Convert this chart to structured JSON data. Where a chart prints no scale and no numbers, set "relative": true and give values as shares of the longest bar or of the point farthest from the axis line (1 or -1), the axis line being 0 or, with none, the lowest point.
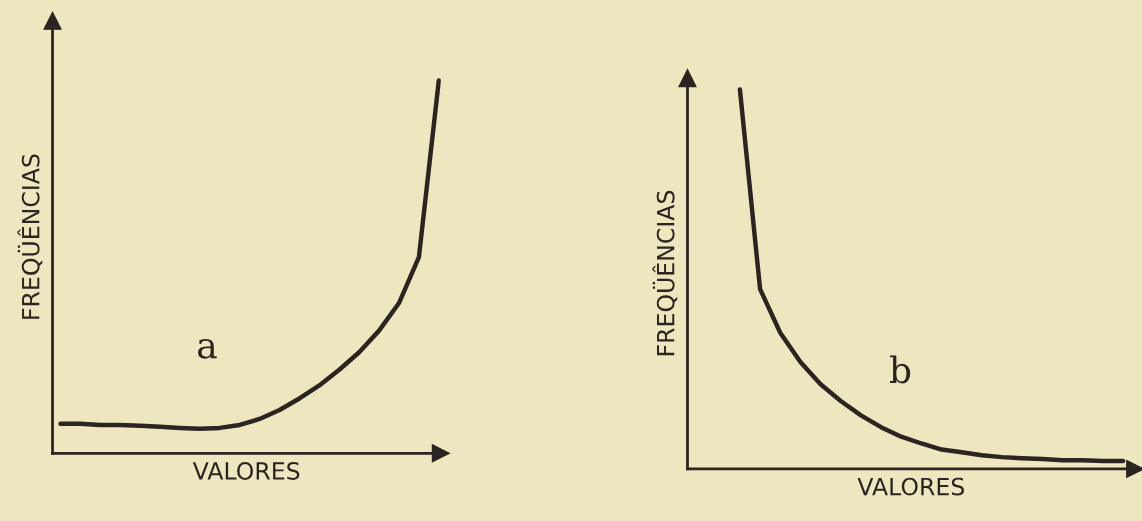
{
  "chart_data": [
    {
      "type": "line",
      "relative": true,
      "xlabel": "VALORES",
      "ylabel": "FREQÜÊNCIAS",
      "annotations": [
        "a"
      ],
      "categories": [
        null,
        null,
        null,
        null,
        null,
        null,
        null,
        null,
        null,
        null,
        null,
        null,
        null,
        null,
        null,
        null,
        null,
        null,
        null,
        null
      ],
      "series": [
        {
          "color": "#2a2520",
          "values": [
            0.079,
            0.079,
            0.076,
            0.076,
            0.074,
            0.071,
            0.068,
            0.066,
            0.068,
            0.076,
            0.092,
            0.116,
            0.147,
            0.182,
            0.224,
            0.271,
            0.329,
            0.403,
            0.526,
            1.0
          ]
        }
      ],
      "grid": false,
      "legend": false,
      "tick_labels": false,
      "marker": "none",
      "line_style": "solid"
    },
    {
      "type": "line",
      "relative": true,
      "xlabel": "VALORES",
      "ylabel": "FREQÜÊNCIAS",
      "annotations": [
        "b"
      ],
      "categories": [
        null,
        null,
        null,
        null,
        null,
        null,
        null,
        null,
        null,
        null,
        null,
        null,
        null,
        null,
        null,
        null,
        null,
        null,
        null,
        null
      ],
      "series": [
        {
          "color": "#2a2520",
          "values": [
            1.0,
            0.474,
            0.359,
            0.282,
            0.223,
            0.179,
            0.141,
            0.11,
            0.085,
            0.067,
            0.051,
            0.044,
            0.036,
            0.031,
            0.028,
            0.026,
            0.023,
            0.023,
            0.021,
            0.021
          ]
        }
      ],
      "grid": false,
      "legend": false,
      "tick_labels": false,
      "marker": "none",
      "line_style": "solid"
    }
  ]
}
